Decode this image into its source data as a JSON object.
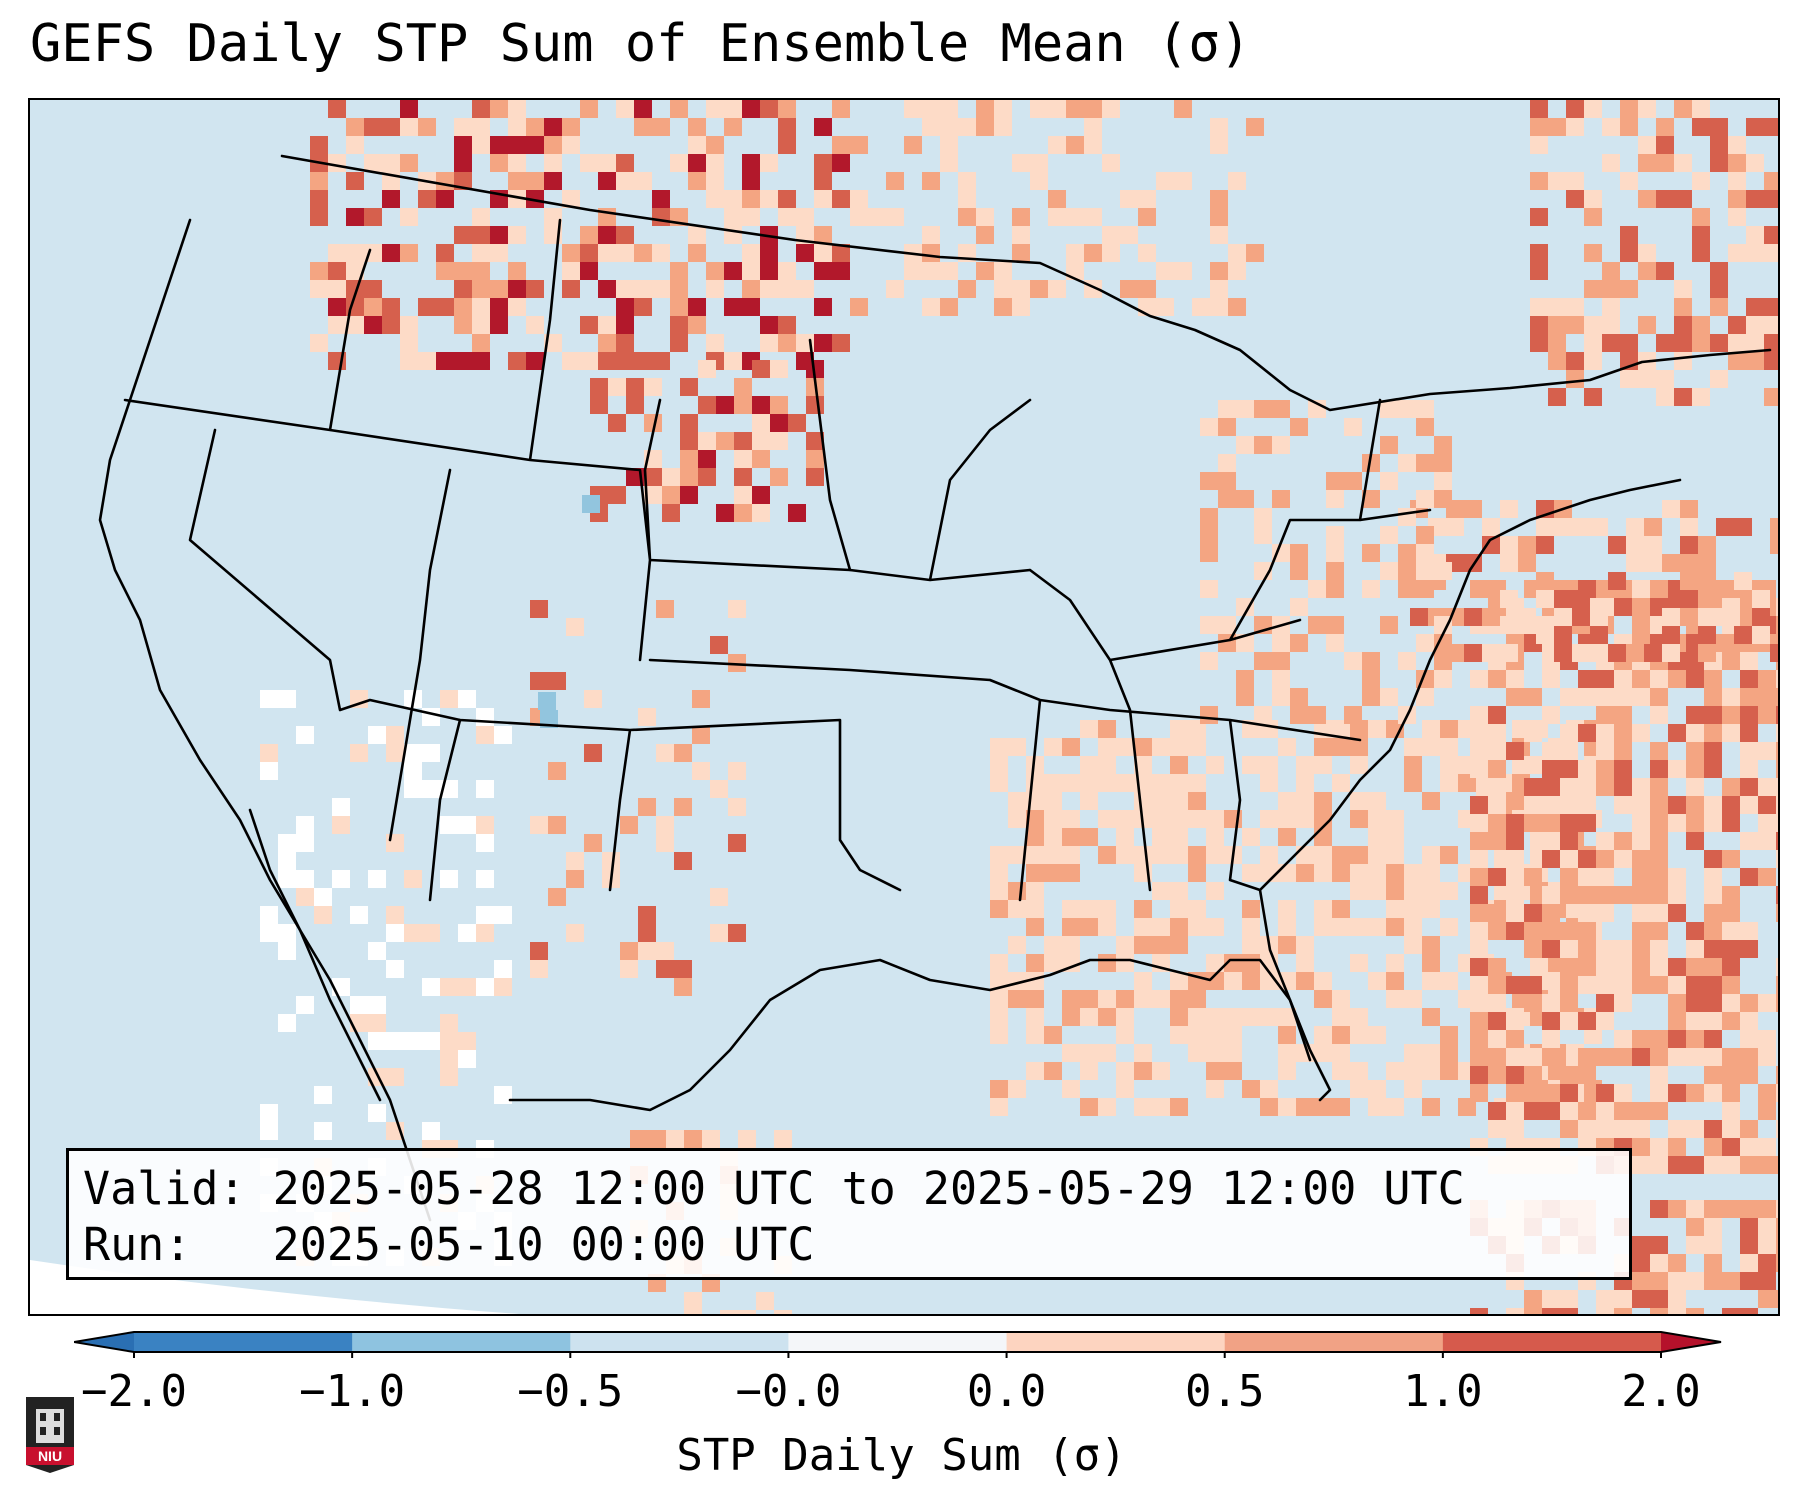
{
  "title": "GEFS Daily STP Sum of Ensemble Mean (σ)",
  "info": {
    "valid": "Valid: 2025-05-28 12:00 UTC to 2025-05-29 12:00 UTC",
    "run": "Run:   2025-05-10 00:00 UTC"
  },
  "colorbar": {
    "label": "STP Daily Sum (σ)",
    "ticks": [
      "−2.0",
      "−1.0",
      "−0.5",
      "−0.0",
      "0.0",
      "0.5",
      "1.0",
      "2.0"
    ],
    "bins": [
      "#3a82c2",
      "#8ec3e0",
      "#cde2ef",
      "#f4f6f9",
      "#fdd4c0",
      "#f1a285",
      "#d65a4c"
    ],
    "under_color": "#2a6fb3",
    "over_color": "#b5112b"
  },
  "map": {
    "background_color": "#d1e5f0",
    "outside_color": "#ffffff",
    "legend_colors": {
      "light_red": "#fddbc7",
      "mid_red": "#f4a582",
      "red": "#d6604d",
      "dark_red": "#b2182b",
      "light_blue": "#92c5de",
      "near_zero": "#ffffff"
    }
  },
  "logo": {
    "text": "NIU"
  }
}
